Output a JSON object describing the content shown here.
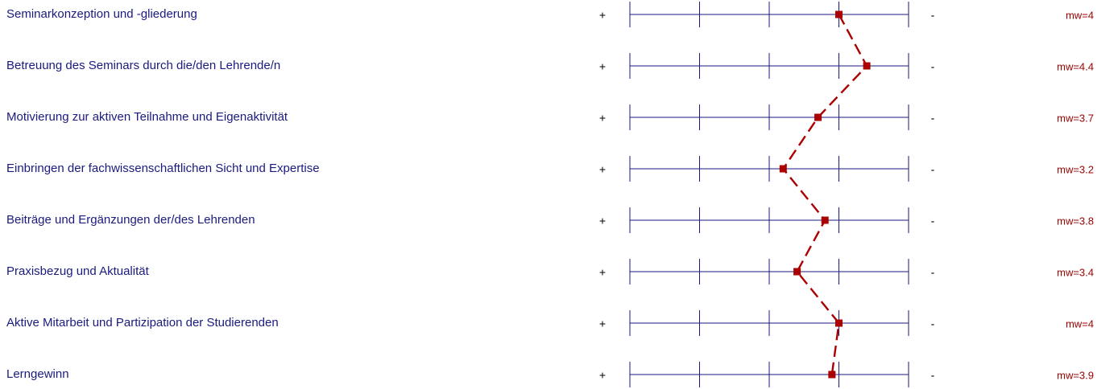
{
  "chart_data": {
    "type": "line",
    "orientation": "profile",
    "scale_min": 1,
    "scale_max": 5,
    "left_pole": "+",
    "right_pole": "-",
    "mean_prefix": "mw=",
    "colors": {
      "label": "#1a1a80",
      "grid": "#1a1a80",
      "line": "#aa0000",
      "mean_text": "#990000"
    },
    "items": [
      {
        "label": "Seminarkonzeption und -gliederung",
        "mean": 4.0,
        "mean_text": "mw=4"
      },
      {
        "label": "Betreuung des Seminars durch die/den Lehrende/n",
        "mean": 4.4,
        "mean_text": "mw=4.4"
      },
      {
        "label": "Motivierung zur aktiven Teilnahme und Eigenaktivität",
        "mean": 3.7,
        "mean_text": "mw=3.7"
      },
      {
        "label": "Einbringen der fachwissenschaftlichen Sicht und Expertise",
        "mean": 3.2,
        "mean_text": "mw=3.2"
      },
      {
        "label": "Beiträge und Ergänzungen der/des Lehrenden",
        "mean": 3.8,
        "mean_text": "mw=3.8"
      },
      {
        "label": "Praxisbezug und Aktualität",
        "mean": 3.4,
        "mean_text": "mw=3.4"
      },
      {
        "label": "Aktive Mitarbeit und Partizipation der Studierenden",
        "mean": 4.0,
        "mean_text": "mw=4"
      },
      {
        "label": "Lerngewinn",
        "mean": 3.9,
        "mean_text": "mw=3.9"
      }
    ]
  }
}
